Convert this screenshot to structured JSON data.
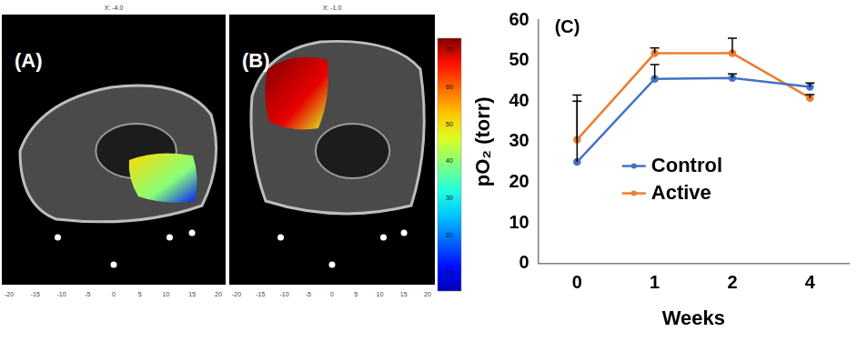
{
  "panels": [
    {
      "label": "(A)",
      "header": "X: -4.0",
      "xlim": [
        -20,
        20
      ],
      "xticks": [
        -20,
        -15,
        -10,
        -5,
        0,
        5,
        10,
        15,
        20
      ],
      "pO2_range": [
        15,
        50
      ]
    },
    {
      "label": "(B)",
      "header": "X: -1.0",
      "xlim": [
        -20,
        20
      ],
      "xticks": [
        -20,
        -15,
        -10,
        -5,
        0,
        5,
        10,
        15,
        20
      ],
      "pO2_range": [
        45,
        75
      ]
    }
  ],
  "colorbar": {
    "range": [
      5,
      73
    ],
    "ticks": [
      10,
      20,
      30,
      40,
      50,
      60,
      70
    ]
  },
  "chart_data": {
    "type": "line",
    "title": "(C)",
    "x_label": "Weeks",
    "y_label": "pO₂ (torr)",
    "categories": [
      "0",
      "1",
      "2",
      "4"
    ],
    "series": [
      {
        "name": "Control",
        "color": "#4472c4",
        "values": [
          25,
          45.5,
          45.7,
          43.5
        ],
        "error_plus": [
          15,
          3.5,
          1,
          1
        ]
      },
      {
        "name": "Active",
        "color": "#ed7d31",
        "values": [
          30.5,
          51.8,
          51.8,
          40.8
        ],
        "error_plus": [
          11,
          1.3,
          3.7,
          0.8
        ]
      }
    ],
    "ylim": [
      0,
      60
    ],
    "yticks": [
      0,
      10,
      20,
      30,
      40,
      50,
      60
    ],
    "grid": false,
    "legend": "center",
    "marker": "circle"
  }
}
